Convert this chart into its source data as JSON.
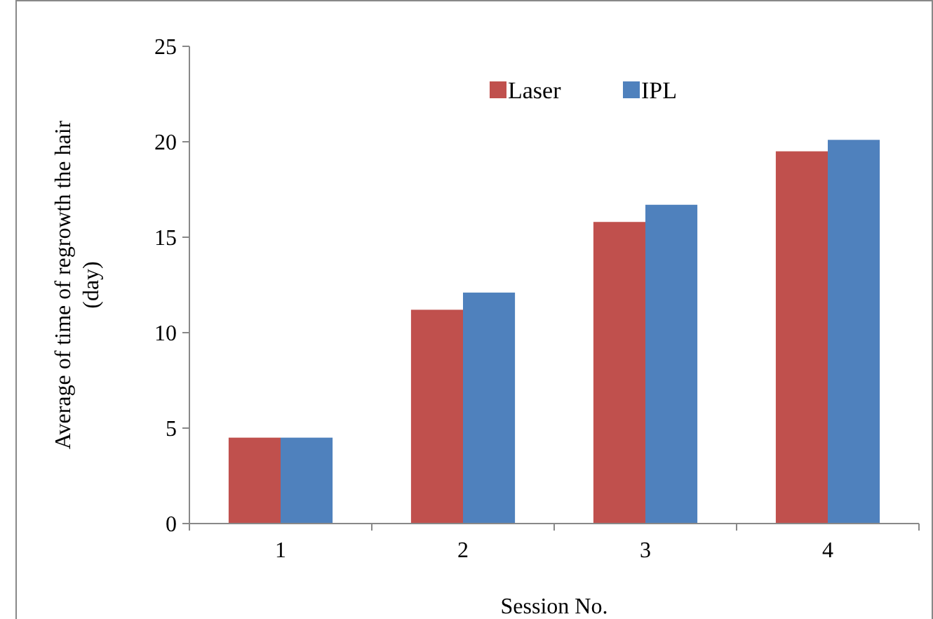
{
  "chart_data": {
    "type": "bar",
    "xlabel": "Session No.",
    "ylabel": "Average of time of regrowth the hair\n(day)",
    "categories": [
      "1",
      "2",
      "3",
      "4"
    ],
    "series": [
      {
        "name": "Laser",
        "color": "#c0504d",
        "values": [
          4.5,
          11.2,
          15.8,
          19.5
        ]
      },
      {
        "name": "IPL",
        "color": "#4f81bd",
        "values": [
          4.5,
          12.1,
          16.7,
          20.1
        ]
      }
    ],
    "ylim": [
      0,
      25
    ],
    "yticks": [
      0,
      5,
      10,
      15,
      20,
      25
    ],
    "legend": "top"
  }
}
